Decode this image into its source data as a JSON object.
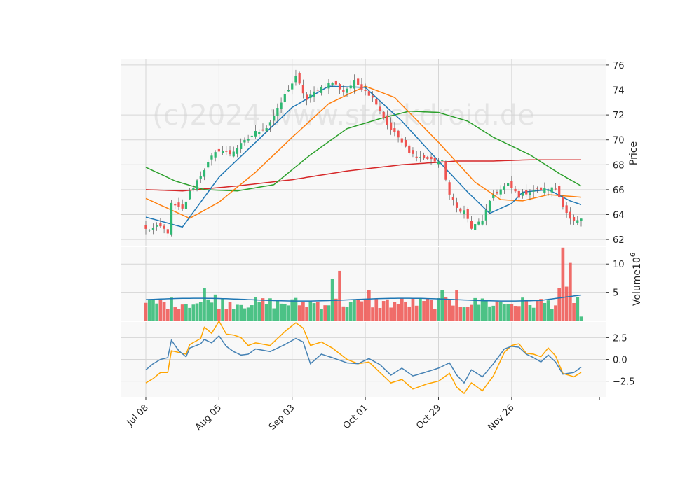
{
  "watermark": "(c)2024 www.stockdroid.de",
  "colors": {
    "up": "#2eb872",
    "down": "#ef5350",
    "ma_short": "#1f77b4",
    "ma_mid": "#ff7f0e",
    "ma_long": "#2ca02c",
    "ma_200": "#d62728",
    "vol_ma": "#1f77b4",
    "osc_a": "#4682b4",
    "osc_b": "#ffa500",
    "panel_bg": "#f8f8f8",
    "grid": "#d6d6d6"
  },
  "chart_data": [
    {
      "type": "candlestick",
      "panel": "price",
      "ylabel": "Price",
      "ylim": [
        61.5,
        76.5
      ],
      "yticks": [
        62,
        64,
        66,
        68,
        70,
        72,
        74,
        76
      ],
      "x_tick_labels": [
        "Jul 08",
        "Aug 05",
        "Sep 03",
        "Oct 01",
        "Oct 29",
        "Nov 26"
      ],
      "x_tick_index": [
        0,
        20,
        40,
        60,
        80,
        100
      ],
      "grid": true,
      "close_anchors": [
        [
          0,
          62.8
        ],
        [
          4,
          63.0
        ],
        [
          6,
          62.6
        ],
        [
          7,
          64.8
        ],
        [
          10,
          64.4
        ],
        [
          12,
          65.8
        ],
        [
          15,
          67.2
        ],
        [
          18,
          68.6
        ],
        [
          20,
          69.2
        ],
        [
          23,
          68.9
        ],
        [
          26,
          69.6
        ],
        [
          30,
          70.6
        ],
        [
          33,
          71.0
        ],
        [
          36,
          72.4
        ],
        [
          38,
          73.6
        ],
        [
          41,
          75.0
        ],
        [
          44,
          73.2
        ],
        [
          47,
          74.1
        ],
        [
          51,
          74.6
        ],
        [
          54,
          73.9
        ],
        [
          57,
          74.6
        ],
        [
          60,
          74.0
        ],
        [
          63,
          73.0
        ],
        [
          66,
          71.2
        ],
        [
          69,
          70.2
        ],
        [
          72,
          68.9
        ],
        [
          75,
          68.6
        ],
        [
          78,
          68.4
        ],
        [
          81,
          68.2
        ],
        [
          83,
          65.6
        ],
        [
          85,
          64.5
        ],
        [
          87,
          64.3
        ],
        [
          89,
          62.9
        ],
        [
          92,
          63.6
        ],
        [
          95,
          65.6
        ],
        [
          99,
          66.4
        ],
        [
          102,
          65.5
        ],
        [
          105,
          65.9
        ],
        [
          108,
          66.0
        ],
        [
          112,
          66.1
        ],
        [
          114,
          64.8
        ],
        [
          116,
          63.6
        ],
        [
          117,
          63.4
        ],
        [
          119,
          63.5
        ]
      ],
      "ma_anchors": {
        "ma_short": [
          [
            0,
            63.8
          ],
          [
            10,
            63.0
          ],
          [
            20,
            67.0
          ],
          [
            30,
            69.8
          ],
          [
            40,
            72.6
          ],
          [
            50,
            74.3
          ],
          [
            60,
            74.2
          ],
          [
            70,
            71.5
          ],
          [
            80,
            68.3
          ],
          [
            88,
            65.8
          ],
          [
            94,
            64.1
          ],
          [
            100,
            64.9
          ],
          [
            103,
            65.8
          ],
          [
            110,
            66.0
          ],
          [
            116,
            65.1
          ],
          [
            119,
            64.8
          ]
        ],
        "ma_mid": [
          [
            0,
            65.3
          ],
          [
            12,
            63.7
          ],
          [
            20,
            65.0
          ],
          [
            30,
            67.4
          ],
          [
            40,
            70.2
          ],
          [
            50,
            72.9
          ],
          [
            60,
            74.3
          ],
          [
            68,
            73.4
          ],
          [
            80,
            69.8
          ],
          [
            90,
            66.6
          ],
          [
            97,
            65.2
          ],
          [
            103,
            65.1
          ],
          [
            110,
            65.6
          ],
          [
            119,
            65.4
          ]
        ],
        "ma_long": [
          [
            0,
            67.8
          ],
          [
            8,
            66.7
          ],
          [
            16,
            66.0
          ],
          [
            25,
            65.9
          ],
          [
            35,
            66.4
          ],
          [
            45,
            68.8
          ],
          [
            55,
            70.9
          ],
          [
            64,
            71.7
          ],
          [
            72,
            72.3
          ],
          [
            80,
            72.2
          ],
          [
            88,
            71.5
          ],
          [
            95,
            70.2
          ],
          [
            105,
            68.8
          ],
          [
            113,
            67.3
          ],
          [
            119,
            66.3
          ]
        ],
        "ma_200": [
          [
            0,
            66.0
          ],
          [
            10,
            65.9
          ],
          [
            25,
            66.3
          ],
          [
            40,
            66.8
          ],
          [
            55,
            67.5
          ],
          [
            70,
            68.0
          ],
          [
            85,
            68.3
          ],
          [
            95,
            68.3
          ],
          [
            105,
            68.4
          ],
          [
            119,
            68.4
          ]
        ]
      }
    },
    {
      "type": "bar",
      "panel": "volume",
      "ylabel": "Volume",
      "ylabel_exponent": "6",
      "ylim": [
        0,
        13
      ],
      "yticks": [
        5,
        10
      ],
      "volume_ma_level": 3.7,
      "spikes": [
        [
          16,
          5.7
        ],
        [
          19,
          4.6
        ],
        [
          51,
          7.4
        ],
        [
          53,
          8.8
        ],
        [
          61,
          5.4
        ],
        [
          81,
          5.4
        ],
        [
          85,
          5.4
        ],
        [
          92,
          3.9
        ],
        [
          113,
          5.8
        ],
        [
          114,
          12.9
        ],
        [
          115,
          6.0
        ],
        [
          116,
          10.2
        ]
      ],
      "grid": true
    },
    {
      "type": "line",
      "panel": "oscillator",
      "ylim": [
        -4.3,
        4.3
      ],
      "yticks": [
        2.5,
        0.0,
        -2.5
      ],
      "series_anchors": {
        "osc_a": [
          [
            0,
            -1.2
          ],
          [
            2,
            -0.5
          ],
          [
            4,
            0.0
          ],
          [
            6,
            0.2
          ],
          [
            7,
            2.2
          ],
          [
            9,
            1.0
          ],
          [
            11,
            0.3
          ],
          [
            12,
            1.3
          ],
          [
            15,
            1.8
          ],
          [
            16,
            2.3
          ],
          [
            18,
            1.9
          ],
          [
            20,
            2.7
          ],
          [
            22,
            1.5
          ],
          [
            24,
            0.9
          ],
          [
            26,
            0.5
          ],
          [
            28,
            0.6
          ],
          [
            30,
            1.2
          ],
          [
            34,
            0.9
          ],
          [
            38,
            1.7
          ],
          [
            41,
            2.4
          ],
          [
            43,
            2.0
          ],
          [
            45,
            -0.5
          ],
          [
            48,
            0.6
          ],
          [
            51,
            0.2
          ],
          [
            55,
            -0.4
          ],
          [
            58,
            -0.5
          ],
          [
            61,
            0.1
          ],
          [
            64,
            -0.6
          ],
          [
            67,
            -1.8
          ],
          [
            70,
            -1.0
          ],
          [
            73,
            -1.9
          ],
          [
            77,
            -1.4
          ],
          [
            80,
            -1.0
          ],
          [
            83,
            -0.4
          ],
          [
            85,
            -1.8
          ],
          [
            87,
            -2.7
          ],
          [
            89,
            -1.2
          ],
          [
            92,
            -2.0
          ],
          [
            95,
            -0.5
          ],
          [
            98,
            1.2
          ],
          [
            100,
            1.5
          ],
          [
            102,
            1.4
          ],
          [
            104,
            0.6
          ],
          [
            106,
            0.2
          ],
          [
            108,
            -0.3
          ],
          [
            110,
            0.5
          ],
          [
            112,
            -0.3
          ],
          [
            114,
            -1.7
          ],
          [
            117,
            -1.5
          ],
          [
            119,
            -0.9
          ]
        ],
        "osc_b": [
          [
            0,
            -2.7
          ],
          [
            2,
            -2.2
          ],
          [
            4,
            -1.5
          ],
          [
            6,
            -1.5
          ],
          [
            7,
            1.0
          ],
          [
            9,
            0.8
          ],
          [
            11,
            0.6
          ],
          [
            12,
            1.7
          ],
          [
            15,
            2.4
          ],
          [
            16,
            3.7
          ],
          [
            18,
            3.0
          ],
          [
            20,
            4.4
          ],
          [
            22,
            2.9
          ],
          [
            24,
            2.8
          ],
          [
            26,
            2.5
          ],
          [
            28,
            1.6
          ],
          [
            30,
            1.9
          ],
          [
            34,
            1.6
          ],
          [
            38,
            3.2
          ],
          [
            41,
            4.2
          ],
          [
            43,
            3.6
          ],
          [
            45,
            1.6
          ],
          [
            48,
            2.0
          ],
          [
            51,
            1.3
          ],
          [
            55,
            0.0
          ],
          [
            58,
            -0.5
          ],
          [
            61,
            -0.3
          ],
          [
            64,
            -1.5
          ],
          [
            67,
            -2.7
          ],
          [
            70,
            -2.3
          ],
          [
            73,
            -3.4
          ],
          [
            77,
            -2.8
          ],
          [
            80,
            -2.5
          ],
          [
            83,
            -1.6
          ],
          [
            85,
            -3.2
          ],
          [
            87,
            -3.9
          ],
          [
            89,
            -2.7
          ],
          [
            92,
            -3.6
          ],
          [
            95,
            -1.9
          ],
          [
            98,
            0.8
          ],
          [
            100,
            1.6
          ],
          [
            102,
            1.8
          ],
          [
            104,
            0.7
          ],
          [
            106,
            0.6
          ],
          [
            108,
            0.3
          ],
          [
            110,
            1.3
          ],
          [
            112,
            0.4
          ],
          [
            114,
            -1.6
          ],
          [
            117,
            -2.0
          ],
          [
            119,
            -1.5
          ]
        ]
      },
      "grid": true
    }
  ]
}
